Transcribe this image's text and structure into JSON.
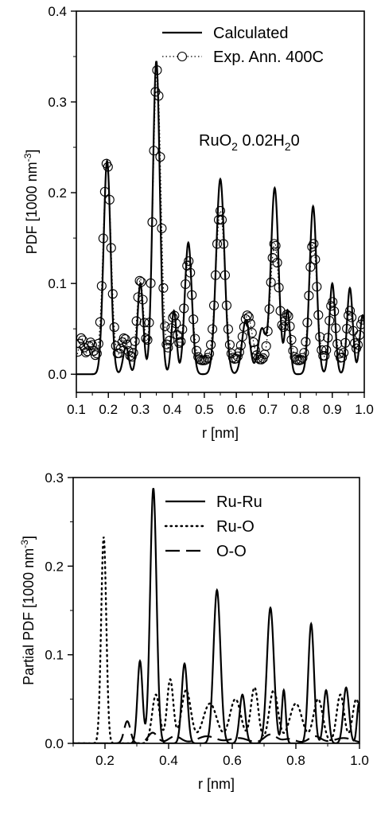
{
  "chart_data": [
    {
      "type": "line",
      "xlabel": "r [nm]",
      "ylabel_main": "PDF [1000 nm",
      "ylabel_sup": "-3",
      "ylabel_end": "]",
      "xlim": [
        0.1,
        1.0
      ],
      "ylim": [
        -0.02,
        0.4
      ],
      "xticks": [
        0.1,
        0.2,
        0.3,
        0.4,
        0.5,
        0.6,
        0.7,
        0.8,
        0.9,
        1.0
      ],
      "xtick_labels": [
        "0.1",
        "0.2",
        "0.3",
        "0.4",
        "0.5",
        "0.6",
        "0.7",
        "0.8",
        "0.9",
        "1.0"
      ],
      "yticks": [
        0.0,
        0.1,
        0.2,
        0.3,
        0.4
      ],
      "ytick_labels": [
        "0.0",
        "0.1",
        "0.2",
        "0.3",
        "0.4"
      ],
      "legend_position": "top-right",
      "annotation": {
        "base": "RuO",
        "sub": "2",
        "rest": " 0.02H",
        "sub2": "2",
        "end": "0"
      },
      "series": [
        {
          "name": "Calculated",
          "style": "solid",
          "baseline": 0.0,
          "peaks": [
            [
              0.196,
              0.235,
              0.011
            ],
            [
              0.255,
              0.03,
              0.009
            ],
            [
              0.3,
              0.1,
              0.009
            ],
            [
              0.35,
              0.345,
              0.011
            ],
            [
              0.405,
              0.07,
              0.008
            ],
            [
              0.45,
              0.145,
              0.011
            ],
            [
              0.55,
              0.215,
              0.013
            ],
            [
              0.63,
              0.06,
              0.012
            ],
            [
              0.68,
              0.05,
              0.012
            ],
            [
              0.72,
              0.205,
              0.012
            ],
            [
              0.76,
              0.07,
              0.008
            ],
            [
              0.84,
              0.185,
              0.011
            ],
            [
              0.9,
              0.1,
              0.009
            ],
            [
              0.955,
              0.095,
              0.009
            ],
            [
              0.995,
              0.065,
              0.009
            ]
          ]
        },
        {
          "name": "Exp. Ann. 400C",
          "style": "dotted-circles",
          "baseline": 0.015,
          "peaks": [
            [
              0.116,
              0.025,
              0.008
            ],
            [
              0.145,
              0.02,
              0.008
            ],
            [
              0.196,
              0.22,
              0.012
            ],
            [
              0.25,
              0.025,
              0.01
            ],
            [
              0.3,
              0.09,
              0.01
            ],
            [
              0.352,
              0.32,
              0.012
            ],
            [
              0.405,
              0.05,
              0.01
            ],
            [
              0.45,
              0.11,
              0.012
            ],
            [
              0.55,
              0.165,
              0.014
            ],
            [
              0.635,
              0.05,
              0.014
            ],
            [
              0.72,
              0.13,
              0.013
            ],
            [
              0.76,
              0.05,
              0.01
            ],
            [
              0.84,
              0.13,
              0.012
            ],
            [
              0.9,
              0.065,
              0.01
            ],
            [
              0.955,
              0.055,
              0.01
            ],
            [
              0.995,
              0.045,
              0.01
            ]
          ]
        }
      ]
    },
    {
      "type": "line",
      "xlabel": "r [nm]",
      "ylabel_main": "Partial PDF [1000 nm",
      "ylabel_sup": "-3",
      "ylabel_end": "]",
      "xlim": [
        0.1,
        1.0
      ],
      "ylim": [
        0.0,
        0.3
      ],
      "xticks": [
        0.2,
        0.4,
        0.6,
        0.8,
        1.0
      ],
      "xtick_labels": [
        "0.2",
        "0.4",
        "0.6",
        "0.8",
        "1.0"
      ],
      "yticks": [
        0.0,
        0.1,
        0.2,
        0.3
      ],
      "ytick_labels": [
        "0.0",
        "0.1",
        "0.2",
        "0.3"
      ],
      "legend_position": "top-right",
      "series": [
        {
          "name": "Ru-Ru",
          "style": "solid",
          "baseline": 0.0,
          "peaks": [
            [
              0.31,
              0.093,
              0.008
            ],
            [
              0.352,
              0.288,
              0.01
            ],
            [
              0.45,
              0.09,
              0.009
            ],
            [
              0.552,
              0.173,
              0.011
            ],
            [
              0.632,
              0.055,
              0.009
            ],
            [
              0.72,
              0.153,
              0.011
            ],
            [
              0.762,
              0.06,
              0.006
            ],
            [
              0.848,
              0.135,
              0.009
            ],
            [
              0.895,
              0.06,
              0.008
            ],
            [
              0.958,
              0.063,
              0.009
            ],
            [
              0.998,
              0.045,
              0.006
            ]
          ]
        },
        {
          "name": "Ru-O",
          "style": "dotted",
          "baseline": 0.0,
          "peaks": [
            [
              0.196,
              0.233,
              0.008
            ],
            [
              0.36,
              0.055,
              0.012
            ],
            [
              0.405,
              0.072,
              0.01
            ],
            [
              0.455,
              0.06,
              0.015
            ],
            [
              0.53,
              0.045,
              0.022
            ],
            [
              0.61,
              0.05,
              0.018
            ],
            [
              0.67,
              0.063,
              0.012
            ],
            [
              0.73,
              0.06,
              0.014
            ],
            [
              0.8,
              0.045,
              0.02
            ],
            [
              0.87,
              0.05,
              0.015
            ],
            [
              0.94,
              0.055,
              0.012
            ],
            [
              0.99,
              0.05,
              0.012
            ]
          ]
        },
        {
          "name": "O-O",
          "style": "long-dash",
          "baseline": 0.0,
          "peaks": [
            [
              0.27,
              0.025,
              0.01
            ],
            [
              0.35,
              0.012,
              0.015
            ],
            [
              0.42,
              0.008,
              0.02
            ],
            [
              0.52,
              0.008,
              0.03
            ],
            [
              0.62,
              0.006,
              0.03
            ],
            [
              0.72,
              0.01,
              0.02
            ],
            [
              0.78,
              0.005,
              0.02
            ],
            [
              0.86,
              0.008,
              0.02
            ],
            [
              0.95,
              0.006,
              0.03
            ]
          ]
        }
      ]
    }
  ]
}
